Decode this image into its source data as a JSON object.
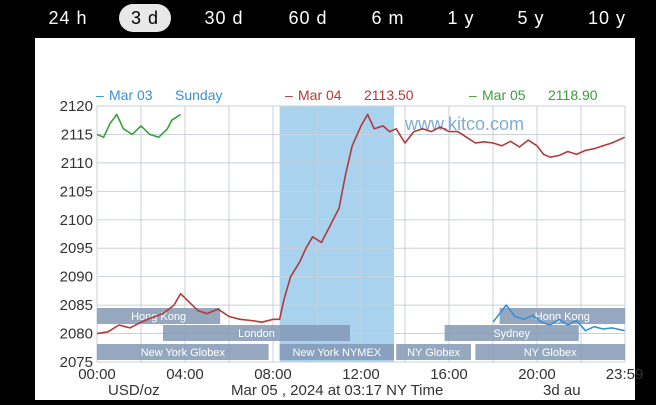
{
  "tabs": [
    {
      "label": "24 h",
      "active": false
    },
    {
      "label": "3 d",
      "active": true
    },
    {
      "label": "30 d",
      "active": false
    },
    {
      "label": "60 d",
      "active": false
    },
    {
      "label": "6 m",
      "active": false
    },
    {
      "label": "1 y",
      "active": false
    },
    {
      "label": "5 y",
      "active": false
    },
    {
      "label": "10 y",
      "active": false
    }
  ],
  "legend": [
    {
      "dash": "–",
      "label": "Mar 03",
      "value": "Sunday",
      "color": "#3a8fd0"
    },
    {
      "dash": "–",
      "label": "Mar 04",
      "value": "2113.50",
      "color": "#b23a3a"
    },
    {
      "dash": "–",
      "label": "Mar 05",
      "value": "2118.90",
      "color": "#3aa03a"
    }
  ],
  "watermark": "www.kitco.com",
  "footer": {
    "unit": "USD/oz",
    "timestamp": "Mar 05 , 2024 at 03:17 NY Time",
    "source": "3d au"
  },
  "sessions": [
    {
      "label": "Hong Kong",
      "start": 0.0,
      "end": 5.6,
      "row": 0
    },
    {
      "label": "Hong Kong",
      "start": 18.3,
      "end": 24.0,
      "row": 0
    },
    {
      "label": "London",
      "start": 3.0,
      "end": 11.5,
      "row": 1
    },
    {
      "label": "Sydney",
      "start": 15.8,
      "end": 21.9,
      "row": 1
    },
    {
      "label": "New York Globex",
      "start": 0.0,
      "end": 7.8,
      "row": 2
    },
    {
      "label": "New York NYMEX",
      "start": 8.3,
      "end": 13.5,
      "row": 2
    },
    {
      "label": "NY Globex",
      "start": 13.6,
      "end": 17.0,
      "row": 2
    },
    {
      "label": "NY Globex",
      "start": 17.2,
      "end": 24.0,
      "row": 2
    }
  ],
  "chart_data": {
    "type": "line",
    "ylim": [
      2075,
      2120
    ],
    "xlim": [
      0,
      24
    ],
    "yticks": [
      2075,
      2080,
      2085,
      2090,
      2095,
      2100,
      2105,
      2110,
      2115,
      2120
    ],
    "xticks": [
      {
        "v": 0,
        "label": "00:00"
      },
      {
        "v": 4,
        "label": "04:00"
      },
      {
        "v": 8,
        "label": "08:00"
      },
      {
        "v": 12,
        "label": "12:00"
      },
      {
        "v": 16,
        "label": "16:00"
      },
      {
        "v": 20,
        "label": "20:00"
      },
      {
        "v": 23.98,
        "label": "23:59"
      }
    ],
    "grid": true,
    "highlight": {
      "start": 8.3,
      "end": 13.5,
      "color": "#a8d2ee"
    },
    "series": [
      {
        "name": "Mar 04",
        "color": "#b23a3a",
        "points": [
          [
            0,
            2080.0
          ],
          [
            0.5,
            2080.3
          ],
          [
            1,
            2081.5
          ],
          [
            1.5,
            2081.0
          ],
          [
            2,
            2082.0
          ],
          [
            2.5,
            2082.8
          ],
          [
            3,
            2083.5
          ],
          [
            3.5,
            2085.0
          ],
          [
            3.8,
            2087.0
          ],
          [
            4.2,
            2085.5
          ],
          [
            4.6,
            2084.0
          ],
          [
            5,
            2083.5
          ],
          [
            5.5,
            2084.3
          ],
          [
            6,
            2083.0
          ],
          [
            6.5,
            2082.5
          ],
          [
            7,
            2082.3
          ],
          [
            7.5,
            2082.0
          ],
          [
            8,
            2082.5
          ],
          [
            8.3,
            2082.5
          ],
          [
            8.5,
            2086.0
          ],
          [
            8.8,
            2090.0
          ],
          [
            9.2,
            2092.5
          ],
          [
            9.5,
            2095.0
          ],
          [
            9.8,
            2097.0
          ],
          [
            10.2,
            2096.0
          ],
          [
            10.6,
            2099.0
          ],
          [
            11,
            2102.0
          ],
          [
            11.3,
            2108.0
          ],
          [
            11.6,
            2113.0
          ],
          [
            12,
            2116.5
          ],
          [
            12.3,
            2118.5
          ],
          [
            12.6,
            2116.0
          ],
          [
            13,
            2116.5
          ],
          [
            13.3,
            2115.5
          ],
          [
            13.6,
            2116.0
          ],
          [
            14,
            2113.5
          ],
          [
            14.4,
            2115.5
          ],
          [
            14.8,
            2116.0
          ],
          [
            15.2,
            2115.5
          ],
          [
            15.6,
            2116.3
          ],
          [
            16,
            2115.5
          ],
          [
            16.4,
            2115.5
          ],
          [
            16.8,
            2114.5
          ],
          [
            17.2,
            2113.5
          ],
          [
            17.6,
            2113.7
          ],
          [
            18,
            2113.5
          ],
          [
            18.4,
            2113.0
          ],
          [
            18.8,
            2113.8
          ],
          [
            19.2,
            2112.8
          ],
          [
            19.6,
            2114.0
          ],
          [
            20,
            2113.0
          ],
          [
            20.3,
            2111.5
          ],
          [
            20.6,
            2111.0
          ],
          [
            21,
            2111.3
          ],
          [
            21.4,
            2112.0
          ],
          [
            21.8,
            2111.5
          ],
          [
            22.2,
            2112.2
          ],
          [
            22.6,
            2112.5
          ],
          [
            23,
            2113.0
          ],
          [
            23.4,
            2113.5
          ],
          [
            23.98,
            2114.5
          ]
        ]
      },
      {
        "name": "Mar 05",
        "color": "#3aa03a",
        "points": [
          [
            0,
            2115.0
          ],
          [
            0.3,
            2114.5
          ],
          [
            0.6,
            2117.0
          ],
          [
            0.9,
            2118.5
          ],
          [
            1.2,
            2116.0
          ],
          [
            1.6,
            2115.0
          ],
          [
            2,
            2116.5
          ],
          [
            2.4,
            2115.0
          ],
          [
            2.8,
            2114.5
          ],
          [
            3.2,
            2116.0
          ],
          [
            3.4,
            2117.5
          ],
          [
            3.8,
            2118.5
          ]
        ]
      },
      {
        "name": "Mar 03",
        "color": "#3a8fd0",
        "points": [
          [
            18,
            2082.0
          ],
          [
            18.3,
            2083.5
          ],
          [
            18.6,
            2085.0
          ],
          [
            19,
            2083.0
          ],
          [
            19.4,
            2082.5
          ],
          [
            19.8,
            2083.2
          ],
          [
            20.2,
            2082.0
          ],
          [
            20.6,
            2081.5
          ],
          [
            21,
            2082.5
          ],
          [
            21.4,
            2081.5
          ],
          [
            21.8,
            2082.3
          ],
          [
            22.2,
            2080.5
          ],
          [
            22.6,
            2081.2
          ],
          [
            23,
            2080.8
          ],
          [
            23.4,
            2081.0
          ],
          [
            23.98,
            2080.5
          ]
        ]
      }
    ]
  }
}
